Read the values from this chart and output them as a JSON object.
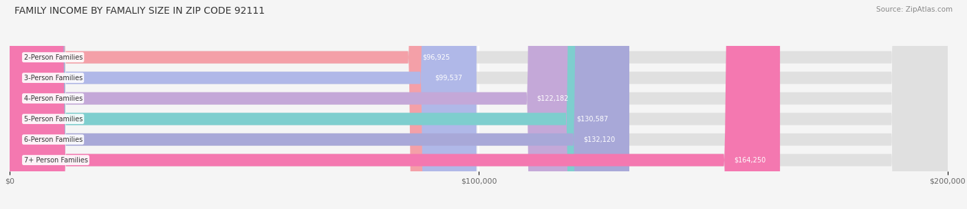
{
  "title": "FAMILY INCOME BY FAMALIY SIZE IN ZIP CODE 92111",
  "source": "Source: ZipAtlas.com",
  "categories": [
    "2-Person Families",
    "3-Person Families",
    "4-Person Families",
    "5-Person Families",
    "6-Person Families",
    "7+ Person Families"
  ],
  "values": [
    96925,
    99537,
    122182,
    130587,
    132120,
    164250
  ],
  "labels": [
    "$96,925",
    "$99,537",
    "$122,182",
    "$130,587",
    "$132,120",
    "$164,250"
  ],
  "bar_colors": [
    "#F4A0A8",
    "#B0B8E8",
    "#C4A8D8",
    "#7ECECE",
    "#A8A8D8",
    "#F478B0"
  ],
  "xlim": [
    0,
    200000
  ],
  "xticks": [
    0,
    100000,
    200000
  ],
  "xticklabels": [
    "$0",
    "$100,000",
    "$200,000"
  ],
  "background_color": "#f5f5f5",
  "title_fontsize": 10,
  "source_fontsize": 7.5,
  "bar_label_fontsize": 7,
  "cat_label_fontsize": 7
}
